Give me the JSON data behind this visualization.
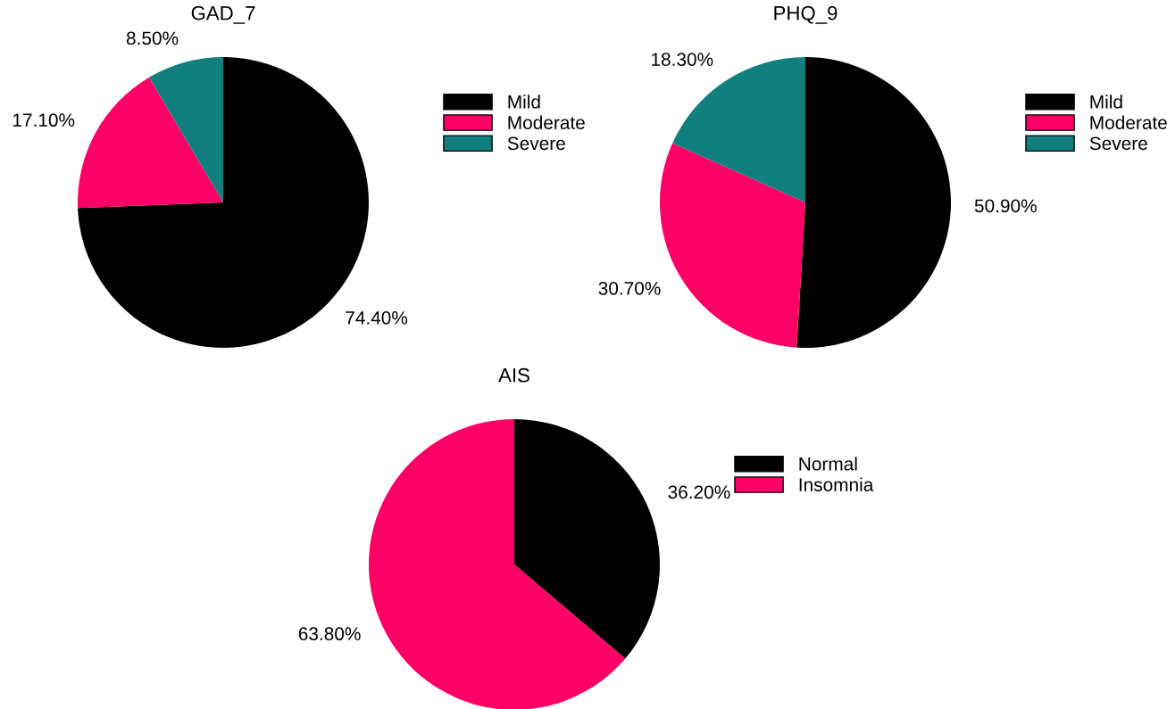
{
  "chart_data": [
    {
      "type": "pie",
      "title": "GAD_7",
      "categories": [
        "Mild",
        "Moderate",
        "Severe"
      ],
      "values": [
        74.4,
        17.1,
        8.5
      ],
      "colors": [
        "#000000",
        "#ff0066",
        "#127f7f"
      ],
      "value_labels": [
        "74.40%",
        "17.10%",
        "8.50%"
      ],
      "legend": "top right"
    },
    {
      "type": "pie",
      "title": "PHQ_9",
      "categories": [
        "Mild",
        "Moderate",
        "Severe"
      ],
      "values": [
        50.9,
        30.7,
        18.3
      ],
      "colors": [
        "#000000",
        "#ff0066",
        "#127f7f"
      ],
      "value_labels": [
        "50.90%",
        "30.70%",
        "18.30%"
      ],
      "legend": "top right"
    },
    {
      "type": "pie",
      "title": "AIS",
      "categories": [
        "Normal",
        "Insomnia"
      ],
      "values": [
        36.2,
        63.8
      ],
      "colors": [
        "#000000",
        "#ff0066"
      ],
      "value_labels": [
        "36.20%",
        "63.80%"
      ],
      "legend": "top right"
    }
  ]
}
